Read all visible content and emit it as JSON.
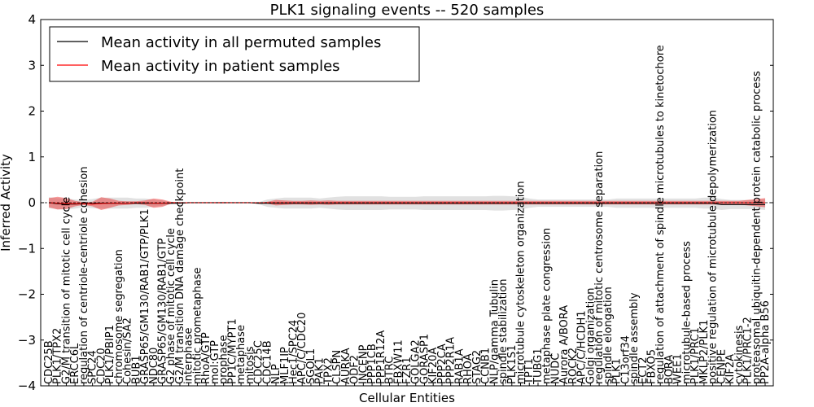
{
  "chart_data": {
    "type": "line",
    "title": "PLK1 signaling events -- 520 samples",
    "xlabel": "Cellular Entities",
    "ylabel": "Inferred Activity",
    "ylim": [
      -4,
      4
    ],
    "yticks": [
      -4,
      -3,
      -2,
      -1,
      0,
      1,
      2,
      3,
      4
    ],
    "legend_position": "top-left",
    "categories": [
      "CDC25B",
      "PLK1/TPX2",
      "G2/M transition of mitotic cell cycle",
      "ERCC6L",
      "regulation of centriole-centriole cohesion",
      "SPC24",
      "CDC20",
      "PLK1/PBIP1",
      "chromosome segregation",
      "Cohesin/SA2",
      "BUB1",
      "GRASP65/GM130/RAB1/GTP/PLK1",
      "NDC80",
      "GRASP65/GM130/RAB1/GTP",
      "G2 phase of mitotic cell cycle",
      "G2/M transition DNA damage checkpoint",
      "interphase",
      "mitotic prometaphase",
      "RhoA/GTP",
      "mol:GTP",
      "prophase",
      "PP1C/MYPT1",
      "metaphase",
      "mitosis",
      "CDC25C",
      "CDC14B",
      "NLP",
      "MLF1IP",
      "Hec1/SPC24",
      "APC/C/CDC20",
      "SGOL1",
      "PAK1",
      "TPX2",
      "CLSPN",
      "AURKA",
      "ODF2",
      "INCENP",
      "PPP1CB",
      "PPP1R12A",
      "BTRC",
      "FBXW11",
      "FZR1",
      "GOLGA2",
      "GORASP1",
      "KIF20A",
      "PPP2CA",
      "PPP2R1A",
      "RAB1A",
      "RHOA",
      "STAG2",
      "CCNB1",
      "NLP/gamma Tubulin",
      "spindle stabilization",
      "PLK1S1",
      "microtubule cytoskeleton organization",
      "TPT1",
      "TUBG1",
      "metaphase plate congression",
      "NUDC",
      "Aurora A/BORA",
      "ROCK2",
      "APC/C/HCDH1",
      "Golgi organization",
      "regulation of mitotic centrosome separation",
      "spindle elongation",
      "PLK1",
      "C13orf34",
      "spindle assembly",
      "ECT2",
      "FBXO5",
      "regulation of attachment of spindle microtubules to kinetochore",
      "BORA",
      "WEE1",
      "microtubule-based process",
      "PLK1/PRC1",
      "MKLP2/PLK1",
      "positive regulation of microtubule depolymerization",
      "CENPE",
      "KIF2A",
      "cytokinesis",
      "PLK1/PRC1-2",
      "proteasomal ubiquitin-dependent protein catabolic process",
      "PP2A-alpha B56"
    ],
    "series": [
      {
        "name": "Mean activity in all permuted samples",
        "color": "#000000",
        "values": [
          0.0,
          -0.02,
          -0.03,
          -0.03,
          -0.02,
          -0.02,
          -0.01,
          -0.01,
          -0.01,
          -0.01,
          -0.01,
          -0.01,
          -0.01,
          -0.01,
          -0.01,
          -0.01,
          0.0,
          0.0,
          0.0,
          0.0,
          0.0,
          0.0,
          0.0,
          0.0,
          -0.01,
          -0.01,
          -0.01,
          -0.01,
          -0.01,
          -0.01,
          -0.01,
          -0.01,
          -0.01,
          -0.01,
          -0.01,
          -0.01,
          -0.01,
          -0.01,
          -0.01,
          -0.01,
          -0.01,
          -0.01,
          -0.01,
          -0.01,
          -0.01,
          -0.01,
          -0.01,
          -0.01,
          -0.01,
          -0.01,
          -0.01,
          -0.01,
          -0.01,
          -0.01,
          -0.01,
          -0.01,
          -0.01,
          -0.01,
          -0.01,
          -0.01,
          -0.01,
          -0.01,
          -0.01,
          -0.01,
          -0.01,
          -0.01,
          -0.01,
          -0.01,
          -0.01,
          -0.01,
          -0.01,
          -0.01,
          -0.01,
          -0.01,
          -0.01,
          -0.01,
          -0.01,
          -0.04,
          -0.04,
          -0.04,
          -0.04,
          -0.04,
          -0.04
        ],
        "band": [
          0.12,
          0.12,
          0.12,
          0.1,
          0.08,
          0.1,
          0.12,
          0.12,
          0.12,
          0.12,
          0.1,
          0.1,
          0.08,
          0.06,
          0.02,
          0.01,
          0.0,
          0.0,
          0.0,
          0.01,
          0.02,
          0.0,
          0.0,
          0.0,
          0.02,
          0.08,
          0.1,
          0.12,
          0.12,
          0.12,
          0.12,
          0.1,
          0.12,
          0.14,
          0.15,
          0.15,
          0.15,
          0.15,
          0.15,
          0.14,
          0.14,
          0.14,
          0.14,
          0.15,
          0.15,
          0.15,
          0.15,
          0.15,
          0.15,
          0.15,
          0.15,
          0.16,
          0.16,
          0.15,
          0.14,
          0.1,
          0.08,
          0.08,
          0.08,
          0.08,
          0.08,
          0.08,
          0.08,
          0.08,
          0.08,
          0.1,
          0.1,
          0.1,
          0.1,
          0.1,
          0.1,
          0.1,
          0.1,
          0.1,
          0.1,
          0.12,
          0.12,
          0.12,
          0.1,
          0.1,
          0.1,
          0.1,
          0.12
        ]
      },
      {
        "name": "Mean activity in patient samples",
        "color": "#ff0000",
        "values": [
          0.0,
          -0.01,
          -0.02,
          -0.02,
          -0.02,
          -0.03,
          -0.02,
          -0.01,
          -0.01,
          -0.01,
          0.0,
          0.0,
          -0.01,
          -0.01,
          0.0,
          0.0,
          0.0,
          0.0,
          0.0,
          0.0,
          0.0,
          0.0,
          0.0,
          0.0,
          0.0,
          0.0,
          0.0,
          0.0,
          0.0,
          0.0,
          0.0,
          0.0,
          0.0,
          0.0,
          0.0,
          0.0,
          0.0,
          0.0,
          0.0,
          0.0,
          0.0,
          0.0,
          0.0,
          0.0,
          0.0,
          0.0,
          0.0,
          0.0,
          0.0,
          0.0,
          0.0,
          0.0,
          0.0,
          0.0,
          0.0,
          0.0,
          0.0,
          0.0,
          0.0,
          0.0,
          0.0,
          0.0,
          0.0,
          0.0,
          0.0,
          0.0,
          0.0,
          0.0,
          0.0,
          0.0,
          0.0,
          0.0,
          0.0,
          0.0,
          0.0,
          0.0,
          0.0,
          0.0,
          0.0,
          0.0,
          0.0,
          0.0,
          0.0
        ],
        "band": [
          0.1,
          0.14,
          0.12,
          0.06,
          0.03,
          0.05,
          0.14,
          0.1,
          0.05,
          0.04,
          0.03,
          0.05,
          0.1,
          0.08,
          0.02,
          0.01,
          0.0,
          0.0,
          0.0,
          0.0,
          0.0,
          0.0,
          0.0,
          0.0,
          0.0,
          0.02,
          0.06,
          0.05,
          0.04,
          0.04,
          0.05,
          0.04,
          0.05,
          0.04,
          0.04,
          0.04,
          0.04,
          0.04,
          0.04,
          0.04,
          0.04,
          0.04,
          0.04,
          0.04,
          0.04,
          0.04,
          0.04,
          0.04,
          0.04,
          0.04,
          0.04,
          0.04,
          0.04,
          0.04,
          0.04,
          0.04,
          0.04,
          0.04,
          0.04,
          0.04,
          0.04,
          0.04,
          0.04,
          0.04,
          0.04,
          0.04,
          0.04,
          0.04,
          0.04,
          0.04,
          0.04,
          0.04,
          0.04,
          0.04,
          0.04,
          0.04,
          0.04,
          0.04,
          0.04,
          0.04,
          0.06,
          0.08,
          0.1
        ]
      }
    ]
  }
}
